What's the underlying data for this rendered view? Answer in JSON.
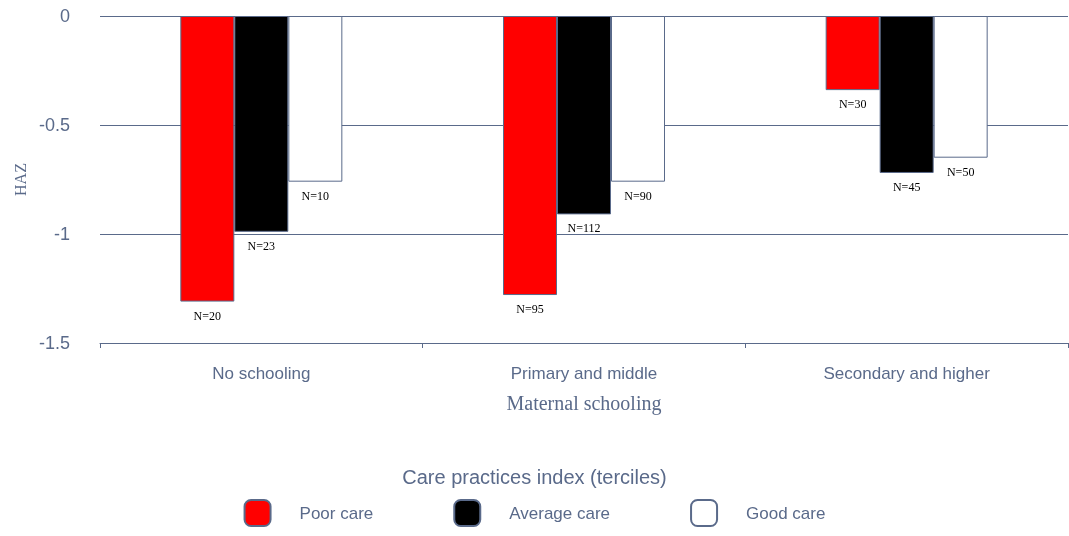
{
  "chart_data": {
    "type": "bar",
    "xlabel": "Maternal schooling",
    "ylabel": "HAZ",
    "legend_title": "Care practices index (terciles)",
    "categories": [
      "No schooling",
      "Primary and middle",
      "Secondary and higher"
    ],
    "series": [
      {
        "name": "Poor care",
        "color": "#ff0000",
        "values": [
          -1.31,
          -1.28,
          -0.34
        ]
      },
      {
        "name": "Average care",
        "color": "#000000",
        "values": [
          -0.99,
          -0.91,
          -0.72
        ]
      },
      {
        "name": "Good care",
        "color": "#ffffff",
        "values": [
          -0.76,
          -0.76,
          -0.65
        ]
      }
    ],
    "annotations": [
      "N=20",
      "N=23",
      "N=10",
      "N=95",
      "N=112",
      "N=90",
      "N=30",
      "N=45",
      "N=50"
    ],
    "ylim": [
      -1.5,
      0
    ],
    "yticks": [
      0,
      -0.5,
      -1,
      -1.5
    ],
    "grid": "y",
    "legend": "bottom"
  }
}
